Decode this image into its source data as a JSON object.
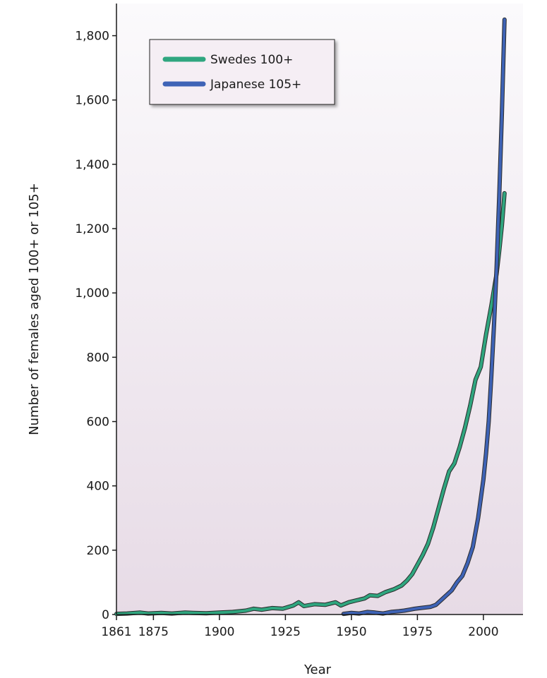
{
  "chart_data": {
    "type": "line",
    "title": "",
    "xlabel": "Year",
    "ylabel": "Number of females aged 100+ or 105+",
    "xlim": [
      1861,
      2015
    ],
    "ylim": [
      0,
      1900
    ],
    "x_ticks": [
      1861,
      1875,
      1900,
      1925,
      1950,
      1975,
      2000
    ],
    "y_ticks": [
      0,
      200,
      400,
      600,
      800,
      1000,
      1200,
      1400,
      1600,
      1800
    ],
    "y_tick_labels": [
      "0",
      "200",
      "400",
      "600",
      "800",
      "1,000",
      "1,200",
      "1,400",
      "1,600",
      "1,800"
    ],
    "grid": false,
    "legend_position": "top-left",
    "series": [
      {
        "name": "Swedes 100+",
        "color": "#2fa67f",
        "points": [
          [
            1861,
            2
          ],
          [
            1865,
            3
          ],
          [
            1870,
            6
          ],
          [
            1873,
            3
          ],
          [
            1878,
            5
          ],
          [
            1882,
            3
          ],
          [
            1887,
            6
          ],
          [
            1890,
            5
          ],
          [
            1895,
            4
          ],
          [
            1900,
            6
          ],
          [
            1905,
            8
          ],
          [
            1910,
            12
          ],
          [
            1913,
            18
          ],
          [
            1916,
            15
          ],
          [
            1920,
            20
          ],
          [
            1924,
            18
          ],
          [
            1928,
            28
          ],
          [
            1930,
            38
          ],
          [
            1932,
            26
          ],
          [
            1936,
            32
          ],
          [
            1940,
            30
          ],
          [
            1944,
            38
          ],
          [
            1946,
            28
          ],
          [
            1949,
            38
          ],
          [
            1952,
            44
          ],
          [
            1955,
            50
          ],
          [
            1957,
            60
          ],
          [
            1960,
            58
          ],
          [
            1963,
            70
          ],
          [
            1966,
            78
          ],
          [
            1969,
            90
          ],
          [
            1971,
            105
          ],
          [
            1973,
            125
          ],
          [
            1975,
            155
          ],
          [
            1977,
            185
          ],
          [
            1979,
            220
          ],
          [
            1981,
            270
          ],
          [
            1983,
            330
          ],
          [
            1985,
            390
          ],
          [
            1987,
            445
          ],
          [
            1989,
            470
          ],
          [
            1991,
            520
          ],
          [
            1993,
            580
          ],
          [
            1995,
            650
          ],
          [
            1997,
            730
          ],
          [
            1999,
            770
          ],
          [
            2001,
            870
          ],
          [
            2003,
            960
          ],
          [
            2005,
            1060
          ],
          [
            2006,
            1130
          ],
          [
            2007,
            1210
          ],
          [
            2008,
            1310
          ]
        ]
      },
      {
        "name": "Japanese 105+",
        "color": "#3e63b6",
        "points": [
          [
            1947,
            2
          ],
          [
            1950,
            5
          ],
          [
            1953,
            3
          ],
          [
            1956,
            8
          ],
          [
            1959,
            6
          ],
          [
            1962,
            3
          ],
          [
            1965,
            8
          ],
          [
            1968,
            10
          ],
          [
            1970,
            12
          ],
          [
            1972,
            15
          ],
          [
            1974,
            18
          ],
          [
            1976,
            20
          ],
          [
            1978,
            22
          ],
          [
            1980,
            24
          ],
          [
            1982,
            30
          ],
          [
            1984,
            45
          ],
          [
            1986,
            60
          ],
          [
            1988,
            75
          ],
          [
            1990,
            100
          ],
          [
            1992,
            120
          ],
          [
            1994,
            160
          ],
          [
            1996,
            210
          ],
          [
            1998,
            300
          ],
          [
            2000,
            420
          ],
          [
            2001,
            500
          ],
          [
            2002,
            600
          ],
          [
            2003,
            740
          ],
          [
            2004,
            900
          ],
          [
            2005,
            1080
          ],
          [
            2006,
            1300
          ],
          [
            2007,
            1560
          ],
          [
            2008,
            1850
          ]
        ]
      }
    ]
  }
}
